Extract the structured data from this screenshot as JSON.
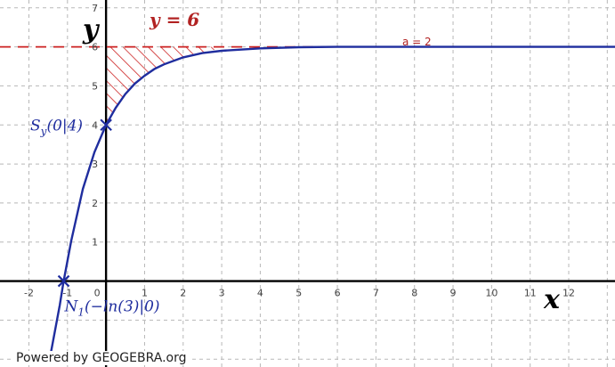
{
  "chart_data": {
    "type": "line",
    "x_ticks": [
      -2,
      -1,
      0,
      1,
      2,
      3,
      4,
      5,
      6,
      7,
      8,
      9,
      10,
      11,
      12
    ],
    "y_ticks": [
      1,
      2,
      3,
      4,
      5,
      6,
      7
    ],
    "xlim": [
      -2.75,
      13.2
    ],
    "ylim": [
      -2.2,
      7.2
    ],
    "grid": true,
    "xlabel": "x",
    "ylabel": "y",
    "asymptote": {
      "y": 6,
      "label": "y = 6"
    },
    "parameter_label": "a = 2",
    "series": [
      {
        "color": "#1f2d9e",
        "x": [
          -1.45,
          -1.2,
          -1.0986,
          -0.9,
          -0.6,
          -0.3,
          0,
          0.25,
          0.5,
          0.75,
          1,
          1.25,
          1.5,
          2,
          2.5,
          3,
          4,
          5,
          6,
          8,
          10,
          13.2
        ],
        "y": [
          -1.94,
          -0.61,
          0,
          1.04,
          2.36,
          3.3,
          4,
          4.44,
          4.79,
          5.06,
          5.26,
          5.43,
          5.55,
          5.73,
          5.84,
          5.9,
          5.96,
          5.99,
          6.0,
          6.0,
          6.0,
          6.0
        ]
      }
    ],
    "shaded_region": {
      "description_points_x": [
        0,
        0.25,
        0.5,
        0.75,
        1,
        1.25,
        1.5,
        2,
        2.5
      ],
      "between": "curve and y = 6",
      "color": "#cc2222"
    },
    "points": [
      {
        "label_main": "S",
        "label_sub": "y",
        "label_rest": "(0|4)",
        "x": 0,
        "y": 4
      },
      {
        "label_main": "N",
        "label_sub": "1",
        "label_rest": "(−ln(3)|0)",
        "x": -1.0986,
        "y": 0
      }
    ]
  },
  "watermark": "Powered by GEOGEBRA.org"
}
